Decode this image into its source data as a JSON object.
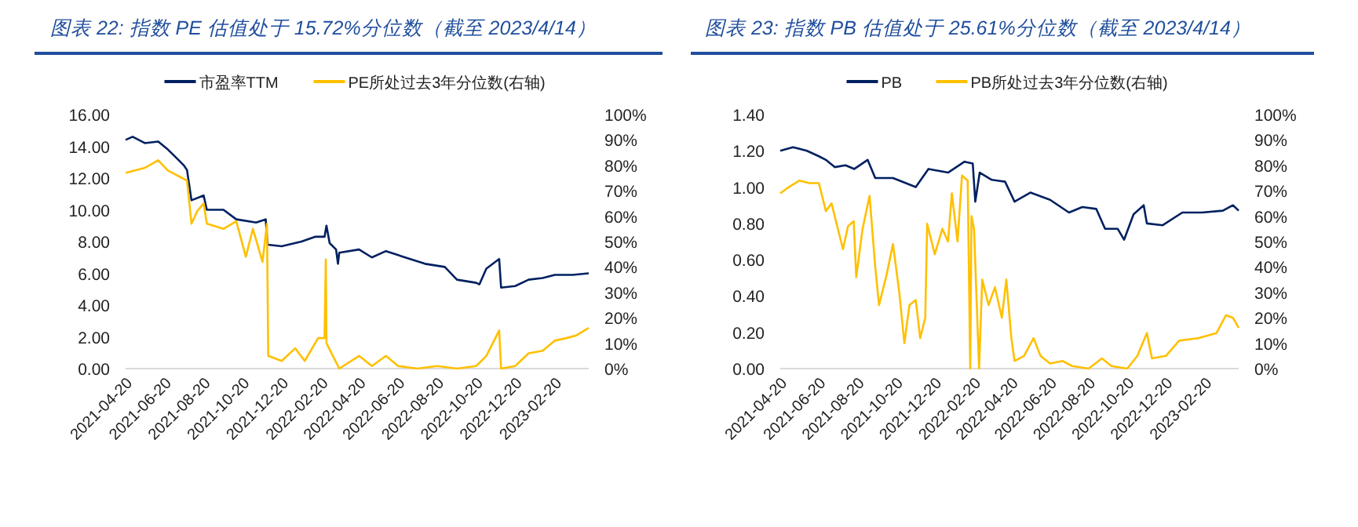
{
  "chart_data": [
    {
      "type": "line",
      "title": "图表 22:  指数 PE 估值处于 15.72%分位数（截至 2023/4/14）",
      "legend": "top",
      "grid": false,
      "xlim": [
        "2021-04-20",
        "2023-04-14"
      ],
      "xticks": [
        "2021-04-20",
        "2021-06-20",
        "2021-08-20",
        "2021-10-20",
        "2021-12-20",
        "2022-02-20",
        "2022-04-20",
        "2022-06-20",
        "2022-08-20",
        "2022-10-20",
        "2022-12-20",
        "2023-02-20"
      ],
      "ylim": [
        0,
        16
      ],
      "yticks": [
        {
          "value": 0,
          "label": "0.00"
        },
        {
          "value": 2,
          "label": "2.00"
        },
        {
          "value": 4,
          "label": "4.00"
        },
        {
          "value": 6,
          "label": "6.00"
        },
        {
          "value": 8,
          "label": "8.00"
        },
        {
          "value": 10,
          "label": "10.00"
        },
        {
          "value": 12,
          "label": "12.00"
        },
        {
          "value": 14,
          "label": "14.00"
        },
        {
          "value": 16,
          "label": "16.00"
        }
      ],
      "y2lim": [
        0,
        100
      ],
      "y2ticks": [
        {
          "value": 0,
          "label": "0%"
        },
        {
          "value": 10,
          "label": "10%"
        },
        {
          "value": 20,
          "label": "20%"
        },
        {
          "value": 30,
          "label": "30%"
        },
        {
          "value": 40,
          "label": "40%"
        },
        {
          "value": 50,
          "label": "50%"
        },
        {
          "value": 60,
          "label": "60%"
        },
        {
          "value": 70,
          "label": "70%"
        },
        {
          "value": 80,
          "label": "80%"
        },
        {
          "value": 90,
          "label": "90%"
        },
        {
          "value": 100,
          "label": "100%"
        }
      ],
      "series": [
        {
          "name": "市盈率TTM",
          "color": "#002060",
          "x": [
            "2021-04-20",
            "2021-05-01",
            "2021-05-20",
            "2021-06-10",
            "2021-06-25",
            "2021-07-10",
            "2021-07-20",
            "2021-07-25",
            "2021-08-01",
            "2021-08-20",
            "2021-08-25",
            "2021-09-20",
            "2021-10-10",
            "2021-11-10",
            "2021-11-25",
            "2021-11-28",
            "2021-12-20",
            "2022-01-20",
            "2022-02-10",
            "2022-02-25",
            "2022-02-28",
            "2022-03-05",
            "2022-03-15",
            "2022-03-18",
            "2022-03-20",
            "2022-04-20",
            "2022-05-10",
            "2022-06-01",
            "2022-07-01",
            "2022-08-01",
            "2022-09-01",
            "2022-09-20",
            "2022-10-20",
            "2022-10-25",
            "2022-11-05",
            "2022-11-25",
            "2022-11-28",
            "2022-12-20",
            "2023-01-10",
            "2023-02-01",
            "2023-02-20",
            "2023-03-20",
            "2023-04-14"
          ],
          "values": [
            14.4,
            14.6,
            14.2,
            14.3,
            13.8,
            13.2,
            12.8,
            12.5,
            10.6,
            10.9,
            10.0,
            10.0,
            9.4,
            9.2,
            9.4,
            7.8,
            7.7,
            8.0,
            8.3,
            8.3,
            9.0,
            7.9,
            7.5,
            6.6,
            7.3,
            7.5,
            7.0,
            7.4,
            7.0,
            6.6,
            6.4,
            5.6,
            5.4,
            5.3,
            6.3,
            6.9,
            5.1,
            5.2,
            5.6,
            5.7,
            5.9,
            5.9,
            6.0
          ]
        },
        {
          "name": "PE所处过去3年分位数(右轴)",
          "color": "#ffc000",
          "axis": "y2",
          "x": [
            "2021-04-20",
            "2021-05-20",
            "2021-06-10",
            "2021-06-25",
            "2021-07-25",
            "2021-08-01",
            "2021-08-10",
            "2021-08-20",
            "2021-08-25",
            "2021-09-20",
            "2021-10-10",
            "2021-10-25",
            "2021-11-05",
            "2021-11-20",
            "2021-11-27",
            "2021-11-29",
            "2021-12-20",
            "2022-01-10",
            "2022-01-25",
            "2022-02-15",
            "2022-02-25",
            "2022-02-27",
            "2022-02-28",
            "2022-03-20",
            "2022-04-20",
            "2022-05-10",
            "2022-06-01",
            "2022-06-20",
            "2022-07-20",
            "2022-08-20",
            "2022-09-20",
            "2022-10-20",
            "2022-11-05",
            "2022-11-25",
            "2022-11-28",
            "2022-12-20",
            "2023-01-10",
            "2023-02-01",
            "2023-02-20",
            "2023-03-10",
            "2023-03-25",
            "2023-04-14"
          ],
          "values": [
            77,
            79,
            82,
            78,
            74,
            57,
            62,
            65,
            57,
            55,
            58,
            44,
            55,
            42,
            57,
            5,
            3,
            8,
            3,
            12,
            12,
            43,
            10,
            0,
            5,
            1,
            5,
            1,
            0,
            1,
            0,
            1,
            5,
            15,
            0,
            1,
            6,
            7,
            11,
            12,
            13,
            16
          ]
        }
      ]
    },
    {
      "type": "line",
      "title": "图表 23:  指数 PB 估值处于 25.61%分位数（截至 2023/4/14）",
      "legend": "top",
      "grid": false,
      "xlim": [
        "2021-04-20",
        "2023-04-14"
      ],
      "xticks": [
        "2021-04-20",
        "2021-06-20",
        "2021-08-20",
        "2021-10-20",
        "2021-12-20",
        "2022-02-20",
        "2022-04-20",
        "2022-06-20",
        "2022-08-20",
        "2022-10-20",
        "2022-12-20",
        "2023-02-20"
      ],
      "ylim": [
        0,
        1.4
      ],
      "yticks": [
        {
          "value": 0,
          "label": "0.00"
        },
        {
          "value": 0.2,
          "label": "0.20"
        },
        {
          "value": 0.4,
          "label": "0.40"
        },
        {
          "value": 0.6,
          "label": "0.60"
        },
        {
          "value": 0.8,
          "label": "0.80"
        },
        {
          "value": 1,
          "label": "1.00"
        },
        {
          "value": 1.2,
          "label": "1.20"
        },
        {
          "value": 1.4,
          "label": "1.40"
        }
      ],
      "y2lim": [
        0,
        100
      ],
      "y2ticks": [
        {
          "value": 0,
          "label": "0%"
        },
        {
          "value": 10,
          "label": "10%"
        },
        {
          "value": 20,
          "label": "20%"
        },
        {
          "value": 30,
          "label": "30%"
        },
        {
          "value": 40,
          "label": "40%"
        },
        {
          "value": 50,
          "label": "50%"
        },
        {
          "value": 60,
          "label": "60%"
        },
        {
          "value": 70,
          "label": "70%"
        },
        {
          "value": 80,
          "label": "80%"
        },
        {
          "value": 90,
          "label": "90%"
        },
        {
          "value": 100,
          "label": "100%"
        }
      ],
      "series": [
        {
          "name": "PB",
          "color": "#002060",
          "x": [
            "2021-04-20",
            "2021-05-10",
            "2021-06-01",
            "2021-06-20",
            "2021-07-01",
            "2021-07-15",
            "2021-08-01",
            "2021-08-15",
            "2021-09-05",
            "2021-09-17",
            "2021-10-15",
            "2021-11-20",
            "2021-12-10",
            "2022-01-10",
            "2022-02-05",
            "2022-02-18",
            "2022-02-22",
            "2022-03-01",
            "2022-03-20",
            "2022-04-10",
            "2022-04-25",
            "2022-05-20",
            "2022-06-20",
            "2022-07-20",
            "2022-08-10",
            "2022-09-01",
            "2022-09-15",
            "2022-10-05",
            "2022-10-15",
            "2022-10-30",
            "2022-11-15",
            "2022-11-20",
            "2022-12-15",
            "2023-01-15",
            "2023-02-15",
            "2023-03-20",
            "2023-04-05",
            "2023-04-14"
          ],
          "values": [
            1.2,
            1.22,
            1.2,
            1.17,
            1.15,
            1.11,
            1.12,
            1.1,
            1.15,
            1.05,
            1.05,
            1.0,
            1.1,
            1.08,
            1.14,
            1.13,
            0.92,
            1.08,
            1.04,
            1.03,
            0.92,
            0.97,
            0.93,
            0.86,
            0.89,
            0.88,
            0.77,
            0.77,
            0.71,
            0.85,
            0.9,
            0.8,
            0.79,
            0.86,
            0.86,
            0.87,
            0.9,
            0.87
          ]
        },
        {
          "name": "PB所处过去3年分位数(右轴)",
          "color": "#ffc000",
          "axis": "y2",
          "x": [
            "2021-04-20",
            "2021-05-01",
            "2021-05-20",
            "2021-06-05",
            "2021-06-20",
            "2021-07-01",
            "2021-07-10",
            "2021-07-20",
            "2021-07-28",
            "2021-08-05",
            "2021-08-14",
            "2021-08-18",
            "2021-08-28",
            "2021-09-08",
            "2021-09-17",
            "2021-09-23",
            "2021-10-05",
            "2021-10-15",
            "2021-10-25",
            "2021-11-02",
            "2021-11-10",
            "2021-11-20",
            "2021-11-27",
            "2021-12-05",
            "2021-12-08",
            "2021-12-20",
            "2022-01-01",
            "2022-01-10",
            "2022-01-16",
            "2022-01-25",
            "2022-02-01",
            "2022-02-10",
            "2022-02-14",
            "2022-02-16",
            "2022-02-20",
            "2022-02-28",
            "2022-03-05",
            "2022-03-15",
            "2022-03-25",
            "2022-04-05",
            "2022-04-12",
            "2022-04-20",
            "2022-04-25",
            "2022-05-10",
            "2022-05-25",
            "2022-06-05",
            "2022-06-20",
            "2022-07-10",
            "2022-07-25",
            "2022-08-20",
            "2022-09-10",
            "2022-09-25",
            "2022-10-20",
            "2022-11-05",
            "2022-11-20",
            "2022-11-28",
            "2022-12-20",
            "2023-01-10",
            "2023-02-10",
            "2023-03-10",
            "2023-03-25",
            "2023-04-05",
            "2023-04-14"
          ],
          "values": [
            69,
            71,
            74,
            73,
            73,
            62,
            65,
            55,
            47,
            56,
            58,
            36,
            55,
            68,
            40,
            25,
            37,
            49,
            30,
            10,
            25,
            27,
            12,
            20,
            57,
            45,
            55,
            50,
            69,
            50,
            76,
            74,
            0,
            60,
            55,
            0,
            35,
            25,
            32,
            20,
            35,
            12,
            3,
            5,
            12,
            5,
            2,
            3,
            1,
            0,
            4,
            1,
            0,
            5,
            14,
            4,
            5,
            11,
            12,
            14,
            21,
            20,
            16
          ]
        }
      ]
    }
  ]
}
